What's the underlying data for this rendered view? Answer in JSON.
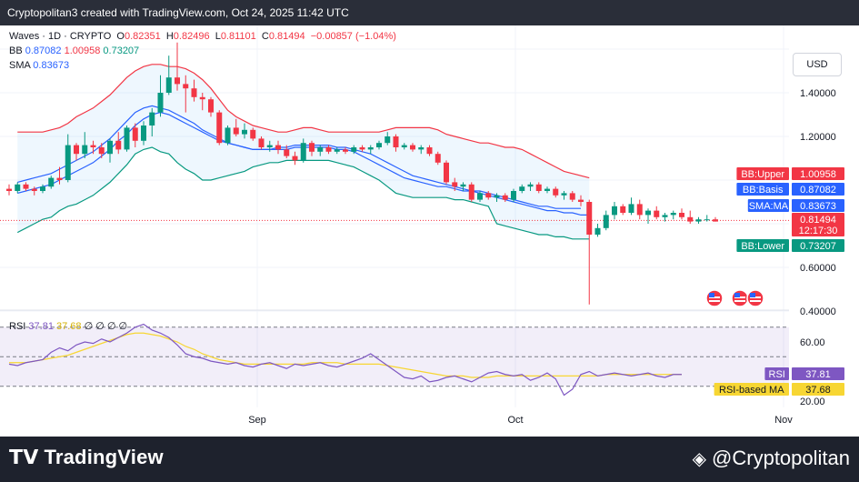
{
  "header": {
    "title": "Cryptopolitan3 created with TradingView.com, Oct 24, 2025 11:42 UTC"
  },
  "legend": {
    "symbol": "Waves · 1D · CRYPTO",
    "o_label": "O",
    "o": "0.82351",
    "h_label": "H",
    "h": "0.82496",
    "l_label": "L",
    "l": "0.81101",
    "c_label": "C",
    "c": "0.81494",
    "change": "−0.00857 (−1.04%)",
    "bb_label": "BB",
    "bb_basis": "0.87082",
    "bb_upper": "1.00958",
    "bb_lower": "0.73207",
    "sma_label": "SMA",
    "sma": "0.83673"
  },
  "currency_button": "USD",
  "rsi_legend": {
    "label": "RSI",
    "rsi": "37.81",
    "ma": "37.68",
    "extra": "∅ ∅ ∅ ∅"
  },
  "price_badges": {
    "bb_upper": {
      "label": "BB:Upper",
      "value": "1.00958",
      "color": "#f23645"
    },
    "bb_basis": {
      "label": "BB:Basis",
      "value": "0.87082",
      "color": "#2962ff"
    },
    "sma": {
      "label": "SMA:MA",
      "value": "0.83673",
      "color": "#2962ff"
    },
    "last": {
      "value": "0.81494",
      "countdown": "12:17:30",
      "color": "#f23645"
    },
    "bb_lower": {
      "label": "BB:Lower",
      "value": "0.73207",
      "color": "#089981"
    }
  },
  "rsi_badges": {
    "rsi": {
      "label": "RSI",
      "value": "37.81",
      "color": "#7e57c2"
    },
    "ma": {
      "label": "RSI-based MA",
      "value": "37.68",
      "color": "#f7d633"
    }
  },
  "footer": {
    "left_brand": "TradingView",
    "right_brand": "@Cryptopolitan"
  },
  "colors": {
    "up": "#089981",
    "down": "#f23645",
    "bb_upper": "#f23645",
    "bb_basis": "#2962ff",
    "bb_lower": "#089981",
    "rsi": "#7e57c2",
    "rsi_ma": "#f7d633"
  },
  "chart_data": [
    {
      "type": "candlestick",
      "symbol": "Waves",
      "interval": "1D",
      "x_tick_labels": [
        "Sep",
        "Oct",
        "Nov"
      ],
      "y_tick_labels": [
        "1.40000",
        "1.20000",
        "0.60000",
        "0.40000"
      ],
      "ylim": [
        0.38,
        1.63
      ],
      "candles": [
        [
          0.96,
          0.98,
          0.93,
          0.95
        ],
        [
          0.95,
          0.99,
          0.94,
          0.98
        ],
        [
          0.98,
          0.99,
          0.95,
          0.96
        ],
        [
          0.96,
          0.97,
          0.93,
          0.95
        ],
        [
          0.95,
          0.98,
          0.94,
          0.97
        ],
        [
          0.97,
          1.02,
          0.96,
          1.01
        ],
        [
          1.01,
          1.06,
          0.98,
          1.0
        ],
        [
          1.0,
          1.21,
          0.99,
          1.16
        ],
        [
          1.16,
          1.17,
          1.09,
          1.12
        ],
        [
          1.12,
          1.22,
          1.1,
          1.16
        ],
        [
          1.16,
          1.18,
          1.12,
          1.15
        ],
        [
          1.15,
          1.17,
          1.1,
          1.12
        ],
        [
          1.12,
          1.19,
          1.08,
          1.18
        ],
        [
          1.18,
          1.22,
          1.12,
          1.14
        ],
        [
          1.14,
          1.25,
          1.13,
          1.24
        ],
        [
          1.24,
          1.26,
          1.15,
          1.18
        ],
        [
          1.18,
          1.27,
          1.16,
          1.25
        ],
        [
          1.25,
          1.33,
          1.2,
          1.31
        ],
        [
          1.31,
          1.48,
          1.29,
          1.4
        ],
        [
          1.4,
          1.57,
          1.39,
          1.47
        ],
        [
          1.47,
          1.63,
          1.41,
          1.44
        ],
        [
          1.44,
          1.48,
          1.31,
          1.42
        ],
        [
          1.42,
          1.46,
          1.36,
          1.38
        ],
        [
          1.38,
          1.4,
          1.32,
          1.37
        ],
        [
          1.37,
          1.38,
          1.29,
          1.31
        ],
        [
          1.31,
          1.32,
          1.16,
          1.17
        ],
        [
          1.17,
          1.25,
          1.16,
          1.24
        ],
        [
          1.24,
          1.28,
          1.2,
          1.21
        ],
        [
          1.21,
          1.26,
          1.19,
          1.23
        ],
        [
          1.23,
          1.24,
          1.18,
          1.19
        ],
        [
          1.19,
          1.2,
          1.14,
          1.15
        ],
        [
          1.15,
          1.18,
          1.13,
          1.16
        ],
        [
          1.16,
          1.18,
          1.12,
          1.14
        ],
        [
          1.14,
          1.16,
          1.1,
          1.11
        ],
        [
          1.11,
          1.13,
          1.07,
          1.09
        ],
        [
          1.09,
          1.19,
          1.08,
          1.17
        ],
        [
          1.17,
          1.18,
          1.11,
          1.13
        ],
        [
          1.13,
          1.16,
          1.11,
          1.15
        ],
        [
          1.15,
          1.16,
          1.12,
          1.13
        ],
        [
          1.13,
          1.15,
          1.12,
          1.14
        ],
        [
          1.14,
          1.15,
          1.12,
          1.13
        ],
        [
          1.13,
          1.16,
          1.12,
          1.15
        ],
        [
          1.15,
          1.16,
          1.13,
          1.14
        ],
        [
          1.14,
          1.16,
          1.12,
          1.15
        ],
        [
          1.15,
          1.18,
          1.14,
          1.17
        ],
        [
          1.17,
          1.22,
          1.16,
          1.2
        ],
        [
          1.2,
          1.21,
          1.13,
          1.15
        ],
        [
          1.15,
          1.17,
          1.14,
          1.16
        ],
        [
          1.16,
          1.17,
          1.13,
          1.14
        ],
        [
          1.14,
          1.16,
          1.12,
          1.15
        ],
        [
          1.15,
          1.16,
          1.11,
          1.12
        ],
        [
          1.12,
          1.13,
          1.07,
          1.08
        ],
        [
          1.08,
          1.09,
          0.98,
          0.99
        ],
        [
          0.99,
          1.01,
          0.95,
          0.97
        ],
        [
          0.97,
          0.99,
          0.95,
          0.98
        ],
        [
          0.98,
          0.99,
          0.9,
          0.91
        ],
        [
          0.91,
          0.95,
          0.9,
          0.94
        ],
        [
          0.94,
          0.95,
          0.91,
          0.92
        ],
        [
          0.92,
          0.94,
          0.9,
          0.93
        ],
        [
          0.93,
          0.94,
          0.9,
          0.91
        ],
        [
          0.91,
          0.96,
          0.9,
          0.95
        ],
        [
          0.95,
          0.98,
          0.94,
          0.97
        ],
        [
          0.97,
          0.99,
          0.95,
          0.98
        ],
        [
          0.98,
          0.99,
          0.94,
          0.95
        ],
        [
          0.95,
          0.97,
          0.94,
          0.96
        ],
        [
          0.96,
          0.97,
          0.92,
          0.93
        ],
        [
          0.93,
          0.95,
          0.91,
          0.94
        ],
        [
          0.94,
          0.95,
          0.9,
          0.91
        ],
        [
          0.91,
          0.93,
          0.88,
          0.9
        ],
        [
          0.9,
          0.91,
          0.43,
          0.75
        ],
        [
          0.75,
          0.8,
          0.74,
          0.78
        ],
        [
          0.78,
          0.86,
          0.77,
          0.84
        ],
        [
          0.84,
          0.9,
          0.82,
          0.88
        ],
        [
          0.88,
          0.89,
          0.84,
          0.85
        ],
        [
          0.85,
          0.92,
          0.84,
          0.89
        ],
        [
          0.89,
          0.91,
          0.82,
          0.84
        ],
        [
          0.84,
          0.87,
          0.8,
          0.86
        ],
        [
          0.86,
          0.88,
          0.82,
          0.83
        ],
        [
          0.83,
          0.85,
          0.81,
          0.84
        ],
        [
          0.84,
          0.86,
          0.82,
          0.85
        ],
        [
          0.85,
          0.87,
          0.82,
          0.83
        ],
        [
          0.83,
          0.86,
          0.8,
          0.81
        ],
        [
          0.81,
          0.83,
          0.8,
          0.82
        ],
        [
          0.82,
          0.84,
          0.81,
          0.82
        ],
        [
          0.82,
          0.83,
          0.81,
          0.81
        ]
      ],
      "bb_upper": [
        1.22,
        1.22,
        1.22,
        1.22,
        1.23,
        1.24,
        1.26,
        1.29,
        1.31,
        1.33,
        1.36,
        1.39,
        1.43,
        1.47,
        1.5,
        1.52,
        1.53,
        1.53,
        1.52,
        1.52,
        1.51,
        1.49,
        1.46,
        1.42,
        1.37,
        1.32,
        1.29,
        1.27,
        1.25,
        1.24,
        1.23,
        1.22,
        1.22,
        1.23,
        1.24,
        1.24,
        1.23,
        1.22,
        1.22,
        1.22,
        1.22,
        1.22,
        1.22,
        1.22,
        1.23,
        1.24,
        1.24,
        1.24,
        1.24,
        1.24,
        1.23,
        1.21,
        1.2,
        1.19,
        1.18,
        1.17,
        1.17,
        1.16,
        1.15,
        1.15,
        1.14,
        1.12,
        1.1,
        1.08,
        1.06,
        1.04,
        1.03,
        1.02,
        1.01
      ],
      "bb_basis": [
        0.99,
        1.0,
        1.01,
        1.02,
        1.03,
        1.05,
        1.07,
        1.09,
        1.11,
        1.13,
        1.16,
        1.19,
        1.23,
        1.27,
        1.31,
        1.33,
        1.34,
        1.33,
        1.32,
        1.3,
        1.28,
        1.26,
        1.23,
        1.21,
        1.19,
        1.17,
        1.16,
        1.15,
        1.14,
        1.14,
        1.14,
        1.15,
        1.15,
        1.16,
        1.16,
        1.16,
        1.16,
        1.16,
        1.15,
        1.15,
        1.14,
        1.13,
        1.12,
        1.1,
        1.08,
        1.06,
        1.04,
        1.02,
        1.01,
        1.0,
        0.99,
        0.98,
        0.97,
        0.96,
        0.95,
        0.95,
        0.94,
        0.93,
        0.92,
        0.91,
        0.9,
        0.89,
        0.88,
        0.88,
        0.87,
        0.87,
        0.87,
        0.87
      ],
      "bb_lower": [
        0.76,
        0.78,
        0.8,
        0.82,
        0.83,
        0.86,
        0.88,
        0.89,
        0.91,
        0.93,
        0.96,
        0.99,
        1.03,
        1.07,
        1.12,
        1.14,
        1.15,
        1.13,
        1.12,
        1.08,
        1.05,
        1.03,
        1.0,
        1.0,
        1.01,
        1.02,
        1.03,
        1.04,
        1.06,
        1.07,
        1.08,
        1.08,
        1.09,
        1.09,
        1.09,
        1.09,
        1.09,
        1.09,
        1.08,
        1.07,
        1.06,
        1.04,
        1.02,
        1.0,
        0.97,
        0.94,
        0.93,
        0.92,
        0.92,
        0.92,
        0.92,
        0.92,
        0.91,
        0.91,
        0.9,
        0.89,
        0.88,
        0.8,
        0.79,
        0.78,
        0.77,
        0.76,
        0.75,
        0.75,
        0.74,
        0.74,
        0.73,
        0.73,
        0.73
      ],
      "sma": [
        0.94,
        0.95,
        0.96,
        0.97,
        0.98,
        1.0,
        1.02,
        1.04,
        1.06,
        1.08,
        1.11,
        1.14,
        1.18,
        1.21,
        1.25,
        1.28,
        1.3,
        1.31,
        1.3,
        1.28,
        1.26,
        1.24,
        1.22,
        1.2,
        1.18,
        1.17,
        1.16,
        1.15,
        1.14,
        1.14,
        1.14,
        1.14,
        1.14,
        1.15,
        1.15,
        1.15,
        1.15,
        1.15,
        1.14,
        1.14,
        1.13,
        1.11,
        1.09,
        1.07,
        1.05,
        1.03,
        1.01,
        1.0,
        0.99,
        0.98,
        0.97,
        0.97,
        0.96,
        0.95,
        0.95,
        0.94,
        0.93,
        0.92,
        0.91,
        0.9,
        0.89,
        0.88,
        0.87,
        0.86,
        0.86,
        0.85,
        0.85,
        0.84,
        0.84
      ]
    },
    {
      "type": "line",
      "name": "RSI",
      "y_tick_labels": [
        "60.00",
        "20.00"
      ],
      "ylim": [
        15,
        80
      ],
      "bands": [
        70,
        50,
        30
      ],
      "rsi": [
        45,
        44,
        46,
        47,
        48,
        53,
        56,
        54,
        58,
        60,
        59,
        62,
        60,
        63,
        66,
        70,
        72,
        68,
        66,
        63,
        58,
        52,
        50,
        49,
        47,
        46,
        45,
        46,
        44,
        43,
        45,
        46,
        44,
        42,
        45,
        44,
        45,
        46,
        44,
        43,
        45,
        47,
        49,
        52,
        48,
        44,
        40,
        36,
        35,
        37,
        33,
        34,
        36,
        37,
        35,
        33,
        36,
        39,
        40,
        38,
        37,
        38,
        34,
        36,
        39,
        35,
        24,
        28,
        38,
        40,
        37,
        38,
        39,
        38,
        37,
        38,
        39,
        37,
        36,
        38,
        38
      ],
      "rsi_ma": [
        46,
        46,
        46,
        47,
        48,
        49,
        50,
        51,
        53,
        55,
        57,
        59,
        61,
        63,
        65,
        66,
        66,
        65,
        64,
        62,
        60,
        57,
        55,
        52,
        50,
        48,
        47,
        46,
        45,
        45,
        45,
        45,
        45,
        45,
        45,
        45,
        46,
        46,
        46,
        46,
        45,
        45,
        45,
        45,
        45,
        44,
        43,
        42,
        41,
        40,
        39,
        38,
        37,
        37,
        37,
        36,
        36,
        36,
        37,
        37,
        37,
        37,
        37,
        37,
        37,
        37,
        37,
        37,
        37,
        37,
        37,
        38,
        38,
        38,
        38,
        38,
        38,
        38,
        38,
        38,
        38
      ]
    }
  ]
}
